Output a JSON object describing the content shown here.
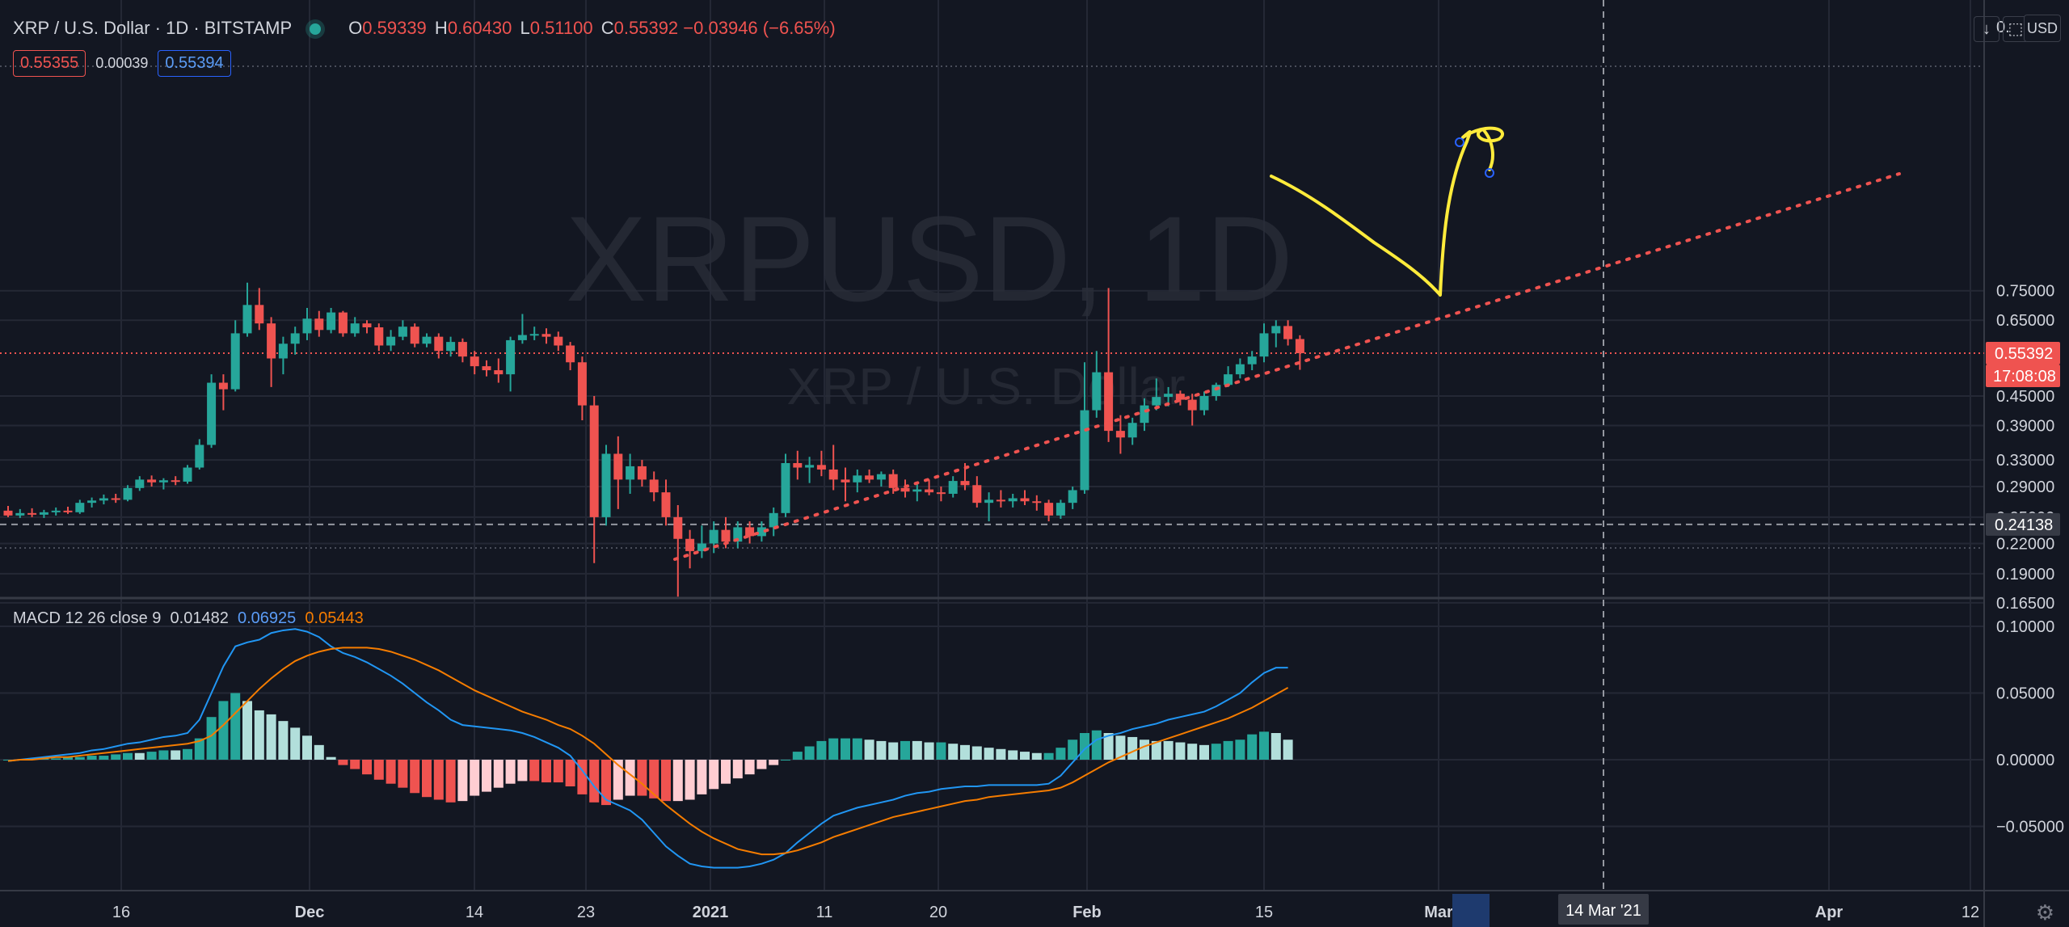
{
  "symbol": {
    "title": "XRP / U.S. Dollar · 1D · BITSTAMP",
    "o_label": "O",
    "o": "0.59339",
    "h_label": "H",
    "h": "0.60430",
    "l_label": "L",
    "l": "0.51100",
    "c_label": "C",
    "c": "0.55392",
    "change": "−0.03946 (−6.65%)"
  },
  "quote": {
    "bid": "0.55355",
    "spread": "0.00039",
    "ask": "0.55394"
  },
  "watermark": {
    "line1": "XRPUSD, 1D",
    "line2": "XRP / U.S. Dollar"
  },
  "macd": {
    "label": "MACD 12 26 close 9",
    "hist": "0.01482",
    "macd": "0.06925",
    "signal": "0.05443"
  },
  "price_axis": {
    "ticks": [
      "0.75000",
      "0.65000",
      "0.45000",
      "0.39000",
      "0.33000",
      "0.29000",
      "0.25000",
      "0.22000",
      "0.19000",
      "0.16500"
    ],
    "top_partial": "0.",
    "currency": "USD",
    "last_price": "0.55392",
    "countdown": "17:08:08",
    "crosshair_price": "0.24138"
  },
  "macd_axis": {
    "ticks": [
      "0.10000",
      "0.05000",
      "0.00000",
      "−0.05000"
    ]
  },
  "time_axis": {
    "ticks": [
      "16",
      "Dec",
      "14",
      "23",
      "2021",
      "11",
      "20",
      "Feb",
      "15",
      "Mar",
      "Apr",
      "12"
    ],
    "crosshair_date": "14 Mar '21"
  },
  "controls": {
    "download_icon": "↓",
    "fullscreen_icon": "⬚",
    "gear_icon": "⚙"
  },
  "colors": {
    "background": "#131722",
    "up": "#26a69a",
    "down": "#ef5350",
    "macd": "#2196f3",
    "signal": "#f57c00",
    "hist_up_strong": "#26a69a",
    "hist_up_weak": "#b2dfdb",
    "hist_down_strong": "#ef5350",
    "hist_down_weak": "#ffcdd2",
    "trendline": "#ef5350",
    "drawing": "#ffeb3b"
  },
  "chart_data": {
    "type": "candlestick",
    "symbol": "XRPUSD",
    "interval": "1D",
    "y_scale": "log",
    "ylim": [
      0.15,
      0.8
    ],
    "candles": [
      {
        "o": 0.258,
        "h": 0.264,
        "l": 0.25,
        "c": 0.252
      },
      {
        "o": 0.252,
        "h": 0.26,
        "l": 0.249,
        "c": 0.255
      },
      {
        "o": 0.255,
        "h": 0.261,
        "l": 0.25,
        "c": 0.253
      },
      {
        "o": 0.253,
        "h": 0.259,
        "l": 0.249,
        "c": 0.256
      },
      {
        "o": 0.256,
        "h": 0.262,
        "l": 0.252,
        "c": 0.258
      },
      {
        "o": 0.258,
        "h": 0.263,
        "l": 0.254,
        "c": 0.256
      },
      {
        "o": 0.256,
        "h": 0.272,
        "l": 0.254,
        "c": 0.268
      },
      {
        "o": 0.268,
        "h": 0.275,
        "l": 0.262,
        "c": 0.271
      },
      {
        "o": 0.271,
        "h": 0.279,
        "l": 0.266,
        "c": 0.274
      },
      {
        "o": 0.274,
        "h": 0.28,
        "l": 0.268,
        "c": 0.272
      },
      {
        "o": 0.272,
        "h": 0.292,
        "l": 0.27,
        "c": 0.288
      },
      {
        "o": 0.288,
        "h": 0.305,
        "l": 0.284,
        "c": 0.3
      },
      {
        "o": 0.3,
        "h": 0.306,
        "l": 0.29,
        "c": 0.296
      },
      {
        "o": 0.296,
        "h": 0.302,
        "l": 0.286,
        "c": 0.299
      },
      {
        "o": 0.299,
        "h": 0.305,
        "l": 0.292,
        "c": 0.297
      },
      {
        "o": 0.297,
        "h": 0.322,
        "l": 0.294,
        "c": 0.318
      },
      {
        "o": 0.318,
        "h": 0.365,
        "l": 0.315,
        "c": 0.355
      },
      {
        "o": 0.355,
        "h": 0.5,
        "l": 0.35,
        "c": 0.48
      },
      {
        "o": 0.48,
        "h": 0.5,
        "l": 0.42,
        "c": 0.465
      },
      {
        "o": 0.465,
        "h": 0.65,
        "l": 0.46,
        "c": 0.61
      },
      {
        "o": 0.61,
        "h": 0.78,
        "l": 0.6,
        "c": 0.7
      },
      {
        "o": 0.7,
        "h": 0.76,
        "l": 0.62,
        "c": 0.64
      },
      {
        "o": 0.64,
        "h": 0.66,
        "l": 0.47,
        "c": 0.54
      },
      {
        "o": 0.54,
        "h": 0.6,
        "l": 0.5,
        "c": 0.58
      },
      {
        "o": 0.58,
        "h": 0.63,
        "l": 0.55,
        "c": 0.61
      },
      {
        "o": 0.61,
        "h": 0.69,
        "l": 0.59,
        "c": 0.655
      },
      {
        "o": 0.655,
        "h": 0.68,
        "l": 0.6,
        "c": 0.62
      },
      {
        "o": 0.62,
        "h": 0.69,
        "l": 0.61,
        "c": 0.675
      },
      {
        "o": 0.675,
        "h": 0.68,
        "l": 0.6,
        "c": 0.61
      },
      {
        "o": 0.61,
        "h": 0.66,
        "l": 0.6,
        "c": 0.64
      },
      {
        "o": 0.64,
        "h": 0.65,
        "l": 0.61,
        "c": 0.628
      },
      {
        "o": 0.628,
        "h": 0.64,
        "l": 0.56,
        "c": 0.575
      },
      {
        "o": 0.575,
        "h": 0.62,
        "l": 0.56,
        "c": 0.6
      },
      {
        "o": 0.6,
        "h": 0.65,
        "l": 0.59,
        "c": 0.63
      },
      {
        "o": 0.63,
        "h": 0.64,
        "l": 0.57,
        "c": 0.58
      },
      {
        "o": 0.58,
        "h": 0.61,
        "l": 0.57,
        "c": 0.6
      },
      {
        "o": 0.6,
        "h": 0.61,
        "l": 0.54,
        "c": 0.56
      },
      {
        "o": 0.56,
        "h": 0.6,
        "l": 0.545,
        "c": 0.585
      },
      {
        "o": 0.585,
        "h": 0.595,
        "l": 0.53,
        "c": 0.545
      },
      {
        "o": 0.545,
        "h": 0.56,
        "l": 0.5,
        "c": 0.52
      },
      {
        "o": 0.52,
        "h": 0.535,
        "l": 0.495,
        "c": 0.51
      },
      {
        "o": 0.51,
        "h": 0.54,
        "l": 0.48,
        "c": 0.5
      },
      {
        "o": 0.5,
        "h": 0.6,
        "l": 0.46,
        "c": 0.59
      },
      {
        "o": 0.59,
        "h": 0.67,
        "l": 0.58,
        "c": 0.605
      },
      {
        "o": 0.605,
        "h": 0.63,
        "l": 0.59,
        "c": 0.608
      },
      {
        "o": 0.608,
        "h": 0.625,
        "l": 0.58,
        "c": 0.6
      },
      {
        "o": 0.6,
        "h": 0.615,
        "l": 0.56,
        "c": 0.575
      },
      {
        "o": 0.575,
        "h": 0.585,
        "l": 0.51,
        "c": 0.53
      },
      {
        "o": 0.53,
        "h": 0.545,
        "l": 0.4,
        "c": 0.43
      },
      {
        "o": 0.43,
        "h": 0.45,
        "l": 0.2,
        "c": 0.25
      },
      {
        "o": 0.25,
        "h": 0.355,
        "l": 0.24,
        "c": 0.34
      },
      {
        "o": 0.34,
        "h": 0.37,
        "l": 0.26,
        "c": 0.3
      },
      {
        "o": 0.3,
        "h": 0.34,
        "l": 0.28,
        "c": 0.32
      },
      {
        "o": 0.32,
        "h": 0.33,
        "l": 0.29,
        "c": 0.3
      },
      {
        "o": 0.3,
        "h": 0.312,
        "l": 0.27,
        "c": 0.282
      },
      {
        "o": 0.282,
        "h": 0.3,
        "l": 0.24,
        "c": 0.25
      },
      {
        "o": 0.25,
        "h": 0.265,
        "l": 0.17,
        "c": 0.225
      },
      {
        "o": 0.225,
        "h": 0.235,
        "l": 0.195,
        "c": 0.212
      },
      {
        "o": 0.212,
        "h": 0.24,
        "l": 0.205,
        "c": 0.22
      },
      {
        "o": 0.22,
        "h": 0.245,
        "l": 0.21,
        "c": 0.235
      },
      {
        "o": 0.235,
        "h": 0.25,
        "l": 0.215,
        "c": 0.222
      },
      {
        "o": 0.222,
        "h": 0.245,
        "l": 0.215,
        "c": 0.238
      },
      {
        "o": 0.238,
        "h": 0.245,
        "l": 0.22,
        "c": 0.228
      },
      {
        "o": 0.228,
        "h": 0.245,
        "l": 0.222,
        "c": 0.238
      },
      {
        "o": 0.238,
        "h": 0.262,
        "l": 0.228,
        "c": 0.255
      },
      {
        "o": 0.255,
        "h": 0.34,
        "l": 0.25,
        "c": 0.325
      },
      {
        "o": 0.325,
        "h": 0.345,
        "l": 0.3,
        "c": 0.318
      },
      {
        "o": 0.318,
        "h": 0.335,
        "l": 0.295,
        "c": 0.322
      },
      {
        "o": 0.322,
        "h": 0.345,
        "l": 0.305,
        "c": 0.315
      },
      {
        "o": 0.315,
        "h": 0.355,
        "l": 0.285,
        "c": 0.3
      },
      {
        "o": 0.3,
        "h": 0.318,
        "l": 0.27,
        "c": 0.296
      },
      {
        "o": 0.296,
        "h": 0.315,
        "l": 0.282,
        "c": 0.306
      },
      {
        "o": 0.306,
        "h": 0.315,
        "l": 0.295,
        "c": 0.3
      },
      {
        "o": 0.3,
        "h": 0.312,
        "l": 0.29,
        "c": 0.308
      },
      {
        "o": 0.308,
        "h": 0.315,
        "l": 0.28,
        "c": 0.288
      },
      {
        "o": 0.288,
        "h": 0.3,
        "l": 0.275,
        "c": 0.283
      },
      {
        "o": 0.283,
        "h": 0.295,
        "l": 0.27,
        "c": 0.286
      },
      {
        "o": 0.286,
        "h": 0.3,
        "l": 0.278,
        "c": 0.282
      },
      {
        "o": 0.282,
        "h": 0.29,
        "l": 0.27,
        "c": 0.28
      },
      {
        "o": 0.28,
        "h": 0.305,
        "l": 0.275,
        "c": 0.298
      },
      {
        "o": 0.298,
        "h": 0.325,
        "l": 0.285,
        "c": 0.292
      },
      {
        "o": 0.292,
        "h": 0.305,
        "l": 0.262,
        "c": 0.268
      },
      {
        "o": 0.268,
        "h": 0.282,
        "l": 0.245,
        "c": 0.272
      },
      {
        "o": 0.272,
        "h": 0.285,
        "l": 0.262,
        "c": 0.27
      },
      {
        "o": 0.27,
        "h": 0.28,
        "l": 0.262,
        "c": 0.274
      },
      {
        "o": 0.274,
        "h": 0.285,
        "l": 0.265,
        "c": 0.27
      },
      {
        "o": 0.27,
        "h": 0.278,
        "l": 0.258,
        "c": 0.268
      },
      {
        "o": 0.268,
        "h": 0.272,
        "l": 0.245,
        "c": 0.252
      },
      {
        "o": 0.252,
        "h": 0.272,
        "l": 0.248,
        "c": 0.268
      },
      {
        "o": 0.268,
        "h": 0.29,
        "l": 0.26,
        "c": 0.285
      },
      {
        "o": 0.285,
        "h": 0.53,
        "l": 0.28,
        "c": 0.42
      },
      {
        "o": 0.42,
        "h": 0.56,
        "l": 0.405,
        "c": 0.505
      },
      {
        "o": 0.505,
        "h": 0.76,
        "l": 0.36,
        "c": 0.38
      },
      {
        "o": 0.38,
        "h": 0.41,
        "l": 0.34,
        "c": 0.368
      },
      {
        "o": 0.368,
        "h": 0.405,
        "l": 0.355,
        "c": 0.395
      },
      {
        "o": 0.395,
        "h": 0.445,
        "l": 0.38,
        "c": 0.43
      },
      {
        "o": 0.43,
        "h": 0.49,
        "l": 0.42,
        "c": 0.448
      },
      {
        "o": 0.448,
        "h": 0.47,
        "l": 0.428,
        "c": 0.455
      },
      {
        "o": 0.455,
        "h": 0.462,
        "l": 0.43,
        "c": 0.442
      },
      {
        "o": 0.442,
        "h": 0.455,
        "l": 0.39,
        "c": 0.42
      },
      {
        "o": 0.42,
        "h": 0.46,
        "l": 0.41,
        "c": 0.45
      },
      {
        "o": 0.45,
        "h": 0.48,
        "l": 0.44,
        "c": 0.475
      },
      {
        "o": 0.475,
        "h": 0.52,
        "l": 0.47,
        "c": 0.5
      },
      {
        "o": 0.5,
        "h": 0.54,
        "l": 0.49,
        "c": 0.525
      },
      {
        "o": 0.525,
        "h": 0.56,
        "l": 0.51,
        "c": 0.545
      },
      {
        "o": 0.545,
        "h": 0.64,
        "l": 0.53,
        "c": 0.61
      },
      {
        "o": 0.61,
        "h": 0.65,
        "l": 0.57,
        "c": 0.632
      },
      {
        "o": 0.632,
        "h": 0.65,
        "l": 0.575,
        "c": 0.593
      },
      {
        "o": 0.59339,
        "h": 0.6043,
        "l": 0.511,
        "c": 0.55392
      }
    ],
    "macd": {
      "hist_ylim": [
        -0.09,
        0.11
      ],
      "macd_line": [
        -0.001,
        0.0,
        0.001,
        0.002,
        0.003,
        0.004,
        0.005,
        0.007,
        0.008,
        0.01,
        0.012,
        0.013,
        0.015,
        0.017,
        0.018,
        0.02,
        0.03,
        0.05,
        0.07,
        0.085,
        0.088,
        0.09,
        0.095,
        0.097,
        0.098,
        0.096,
        0.092,
        0.085,
        0.08,
        0.077,
        0.073,
        0.068,
        0.063,
        0.057,
        0.05,
        0.043,
        0.037,
        0.03,
        0.026,
        0.025,
        0.024,
        0.023,
        0.022,
        0.02,
        0.017,
        0.013,
        0.009,
        0.003,
        -0.008,
        -0.02,
        -0.03,
        -0.034,
        -0.038,
        -0.045,
        -0.055,
        -0.065,
        -0.072,
        -0.078,
        -0.08,
        -0.081,
        -0.081,
        -0.081,
        -0.08,
        -0.078,
        -0.075,
        -0.07,
        -0.062,
        -0.055,
        -0.048,
        -0.042,
        -0.039,
        -0.036,
        -0.034,
        -0.032,
        -0.03,
        -0.027,
        -0.025,
        -0.024,
        -0.022,
        -0.021,
        -0.02,
        -0.02,
        -0.019,
        -0.019,
        -0.019,
        -0.019,
        -0.019,
        -0.018,
        -0.012,
        -0.002,
        0.008,
        0.015,
        0.018,
        0.02,
        0.023,
        0.025,
        0.027,
        0.03,
        0.032,
        0.034,
        0.036,
        0.04,
        0.045,
        0.05,
        0.058,
        0.065,
        0.069,
        0.069
      ],
      "signal_line": [
        -0.001,
        0.0,
        0.0,
        0.001,
        0.002,
        0.002,
        0.003,
        0.004,
        0.005,
        0.006,
        0.007,
        0.008,
        0.009,
        0.01,
        0.011,
        0.012,
        0.014,
        0.018,
        0.026,
        0.035,
        0.044,
        0.053,
        0.061,
        0.068,
        0.074,
        0.078,
        0.081,
        0.083,
        0.084,
        0.084,
        0.084,
        0.083,
        0.081,
        0.078,
        0.075,
        0.071,
        0.067,
        0.062,
        0.057,
        0.052,
        0.048,
        0.044,
        0.04,
        0.036,
        0.033,
        0.03,
        0.026,
        0.023,
        0.018,
        0.012,
        0.004,
        -0.004,
        -0.011,
        -0.018,
        -0.026,
        -0.034,
        -0.041,
        -0.048,
        -0.054,
        -0.059,
        -0.063,
        -0.067,
        -0.069,
        -0.071,
        -0.071,
        -0.07,
        -0.068,
        -0.065,
        -0.062,
        -0.058,
        -0.055,
        -0.052,
        -0.049,
        -0.046,
        -0.043,
        -0.041,
        -0.039,
        -0.037,
        -0.035,
        -0.033,
        -0.031,
        -0.03,
        -0.028,
        -0.027,
        -0.026,
        -0.025,
        -0.024,
        -0.023,
        -0.021,
        -0.017,
        -0.012,
        -0.007,
        -0.002,
        0.002,
        0.006,
        0.01,
        0.013,
        0.016,
        0.019,
        0.022,
        0.025,
        0.028,
        0.031,
        0.035,
        0.039,
        0.044,
        0.049,
        0.054
      ]
    }
  }
}
